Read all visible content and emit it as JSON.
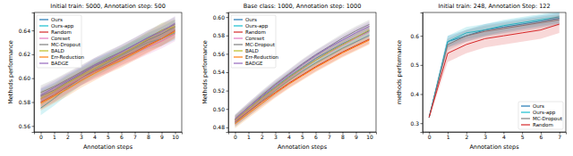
{
  "chart_data": [
    {
      "type": "line",
      "title": "Initial train: 5000, Annotation step: 500",
      "x_label": "Annotation steps",
      "y_label": "Methods performance",
      "x": [
        0,
        1,
        2,
        3,
        4,
        5,
        6,
        7,
        8,
        9,
        10
      ],
      "xlim": [
        -0.5,
        10.5
      ],
      "xticks": [
        0,
        1,
        2,
        3,
        4,
        5,
        6,
        7,
        8,
        9,
        10
      ],
      "ylim": [
        0.555,
        0.655
      ],
      "yticks": [
        0.56,
        0.58,
        {
          "value": 0.6,
          "label": "0.60"
        },
        0.62,
        0.64
      ],
      "grid": false,
      "legend": "upper left",
      "series": [
        {
          "name": "Ours",
          "color": "#1f77b4",
          "values": [
            0.585,
            0.59,
            0.597,
            0.603,
            0.61,
            0.615,
            0.62,
            0.626,
            0.632,
            0.637,
            0.643
          ],
          "error": [
            0.006,
            0.006,
            0.006,
            0.006,
            0.006,
            0.006,
            0.006,
            0.006,
            0.006,
            0.006,
            0.006
          ]
        },
        {
          "name": "Ours-app",
          "color": "#17becf",
          "values": [
            0.575,
            0.583,
            0.592,
            0.6,
            0.607,
            0.613,
            0.619,
            0.625,
            0.63,
            0.633,
            0.638
          ],
          "error": [
            0.006,
            0.006,
            0.006,
            0.006,
            0.006,
            0.006,
            0.006,
            0.006,
            0.006,
            0.006,
            0.006
          ]
        },
        {
          "name": "Random",
          "color": "#d62728",
          "values": [
            0.58,
            0.586,
            0.593,
            0.6,
            0.606,
            0.611,
            0.617,
            0.622,
            0.628,
            0.633,
            0.64
          ],
          "error": [
            0.006,
            0.006,
            0.006,
            0.006,
            0.006,
            0.006,
            0.006,
            0.006,
            0.006,
            0.006,
            0.006
          ]
        },
        {
          "name": "Coreset",
          "color": "#e377c2",
          "values": [
            0.582,
            0.588,
            0.594,
            0.6,
            0.605,
            0.61,
            0.616,
            0.621,
            0.626,
            0.631,
            0.637
          ],
          "error": [
            0.006,
            0.006,
            0.006,
            0.006,
            0.006,
            0.006,
            0.006,
            0.006,
            0.006,
            0.006,
            0.006
          ]
        },
        {
          "name": "MC-Dropout",
          "color": "#7f7f7f",
          "values": [
            0.588,
            0.593,
            0.599,
            0.605,
            0.611,
            0.617,
            0.622,
            0.628,
            0.634,
            0.64,
            0.645
          ],
          "error": [
            0.006,
            0.006,
            0.006,
            0.006,
            0.006,
            0.006,
            0.006,
            0.006,
            0.006,
            0.006,
            0.006
          ]
        },
        {
          "name": "BALD",
          "color": "#bcbd22",
          "values": [
            0.583,
            0.589,
            0.596,
            0.602,
            0.608,
            0.614,
            0.62,
            0.626,
            0.633,
            0.64,
            0.643
          ],
          "error": [
            0.006,
            0.006,
            0.006,
            0.006,
            0.006,
            0.006,
            0.006,
            0.006,
            0.006,
            0.006,
            0.006
          ]
        },
        {
          "name": "Err-Reduction",
          "color": "#ff7f0e",
          "values": [
            0.579,
            0.585,
            0.591,
            0.598,
            0.604,
            0.61,
            0.615,
            0.621,
            0.627,
            0.633,
            0.639
          ],
          "error": [
            0.006,
            0.006,
            0.006,
            0.006,
            0.006,
            0.006,
            0.006,
            0.006,
            0.006,
            0.006,
            0.006
          ]
        },
        {
          "name": "BADGE",
          "color": "#9467bd",
          "values": [
            0.586,
            0.592,
            0.598,
            0.604,
            0.611,
            0.616,
            0.622,
            0.628,
            0.634,
            0.639,
            0.646
          ],
          "error": [
            0.006,
            0.006,
            0.006,
            0.006,
            0.006,
            0.006,
            0.006,
            0.006,
            0.006,
            0.006,
            0.006
          ]
        }
      ]
    },
    {
      "type": "line",
      "title": "Base class: 1000, Annotation step: 1000",
      "x_label": "Annotation steps",
      "y_label": "Methods performance",
      "x": [
        0,
        1,
        2,
        3,
        4,
        5,
        6,
        7,
        8,
        9,
        10
      ],
      "xlim": [
        -0.5,
        10.5
      ],
      "xticks": [
        0,
        1,
        2,
        3,
        4,
        5,
        6,
        7,
        8,
        9,
        10
      ],
      "ylim": [
        0.475,
        0.605
      ],
      "yticks": [
        0.48,
        {
          "value": 0.5,
          "label": "0.50"
        },
        0.52,
        0.54,
        0.56,
        0.58,
        {
          "value": 0.6,
          "label": "0.60"
        }
      ],
      "grid": false,
      "legend": "upper left",
      "series": [
        {
          "name": "Ours",
          "color": "#1f77b4",
          "values": [
            0.488,
            0.5,
            0.513,
            0.524,
            0.535,
            0.545,
            0.555,
            0.563,
            0.571,
            0.578,
            0.585
          ],
          "error": [
            0.005,
            0.005,
            0.005,
            0.005,
            0.005,
            0.005,
            0.005,
            0.005,
            0.005,
            0.005,
            0.005
          ]
        },
        {
          "name": "Ours-app",
          "color": "#17becf",
          "values": [
            0.485,
            0.497,
            0.509,
            0.52,
            0.531,
            0.541,
            0.55,
            0.558,
            0.566,
            0.573,
            0.58
          ],
          "error": [
            0.005,
            0.005,
            0.005,
            0.005,
            0.005,
            0.005,
            0.005,
            0.005,
            0.005,
            0.005,
            0.005
          ]
        },
        {
          "name": "Random",
          "color": "#d62728",
          "values": [
            0.486,
            0.497,
            0.508,
            0.518,
            0.528,
            0.537,
            0.546,
            0.554,
            0.562,
            0.569,
            0.576
          ],
          "error": [
            0.005,
            0.005,
            0.005,
            0.005,
            0.005,
            0.005,
            0.005,
            0.005,
            0.005,
            0.005,
            0.005
          ]
        },
        {
          "name": "Coreset",
          "color": "#e377c2",
          "values": [
            0.487,
            0.499,
            0.511,
            0.522,
            0.533,
            0.543,
            0.553,
            0.561,
            0.569,
            0.577,
            0.584
          ],
          "error": [
            0.005,
            0.005,
            0.005,
            0.005,
            0.005,
            0.005,
            0.005,
            0.005,
            0.005,
            0.005,
            0.005
          ]
        },
        {
          "name": "MC-Dropout",
          "color": "#7f7f7f",
          "values": [
            0.489,
            0.502,
            0.515,
            0.527,
            0.538,
            0.549,
            0.559,
            0.568,
            0.577,
            0.585,
            0.592
          ],
          "error": [
            0.005,
            0.005,
            0.005,
            0.005,
            0.005,
            0.005,
            0.005,
            0.005,
            0.005,
            0.005,
            0.005
          ]
        },
        {
          "name": "BALD",
          "color": "#bcbd22",
          "values": [
            0.488,
            0.5,
            0.512,
            0.523,
            0.534,
            0.544,
            0.553,
            0.562,
            0.57,
            0.578,
            0.586
          ],
          "error": [
            0.005,
            0.005,
            0.005,
            0.005,
            0.005,
            0.005,
            0.005,
            0.005,
            0.005,
            0.005,
            0.005
          ]
        },
        {
          "name": "Err-Reduction",
          "color": "#ff7f0e",
          "values": [
            0.484,
            0.495,
            0.506,
            0.517,
            0.527,
            0.536,
            0.545,
            0.553,
            0.561,
            0.568,
            0.575
          ],
          "error": [
            0.005,
            0.005,
            0.005,
            0.005,
            0.005,
            0.005,
            0.005,
            0.005,
            0.005,
            0.005,
            0.005
          ]
        },
        {
          "name": "BADGE",
          "color": "#9467bd",
          "values": [
            0.489,
            0.502,
            0.514,
            0.526,
            0.537,
            0.548,
            0.558,
            0.567,
            0.575,
            0.583,
            0.59
          ],
          "error": [
            0.005,
            0.005,
            0.005,
            0.005,
            0.005,
            0.005,
            0.005,
            0.005,
            0.005,
            0.005,
            0.005
          ]
        }
      ]
    },
    {
      "type": "line",
      "title": "Initial train: 248, Annotation Step: 122",
      "x_label": "Annotation steps",
      "y_label": "methods performance",
      "x": [
        0,
        1,
        2,
        3,
        4,
        5,
        6,
        7
      ],
      "xlim": [
        -0.35,
        7.35
      ],
      "xticks": [
        0,
        1,
        2,
        3,
        4,
        5,
        6,
        7
      ],
      "ylim": [
        0.27,
        0.68
      ],
      "yticks": [
        0.3,
        0.4,
        0.5,
        0.6
      ],
      "grid": false,
      "legend": "lower right",
      "series": [
        {
          "name": "Ours",
          "color": "#1f77b4",
          "values": [
            0.32,
            0.58,
            0.6,
            0.62,
            0.63,
            0.64,
            0.65,
            0.66
          ],
          "error": [
            0.005,
            0.02,
            0.02,
            0.02,
            0.02,
            0.02,
            0.02,
            0.02
          ]
        },
        {
          "name": "Ours-app",
          "color": "#17becf",
          "values": [
            0.32,
            0.58,
            0.61,
            0.62,
            0.635,
            0.645,
            0.655,
            0.665
          ],
          "error": [
            0.005,
            0.02,
            0.02,
            0.02,
            0.02,
            0.02,
            0.02,
            0.02
          ]
        },
        {
          "name": "MC-Dropout",
          "color": "#7f7f7f",
          "values": [
            0.32,
            0.57,
            0.6,
            0.615,
            0.625,
            0.635,
            0.645,
            0.655
          ],
          "error": [
            0.005,
            0.02,
            0.02,
            0.02,
            0.02,
            0.02,
            0.02,
            0.02
          ]
        },
        {
          "name": "Random",
          "color": "#d62728",
          "values": [
            0.32,
            0.54,
            0.57,
            0.59,
            0.6,
            0.61,
            0.62,
            0.64
          ],
          "error": [
            0.005,
            0.03,
            0.03,
            0.03,
            0.03,
            0.03,
            0.03,
            0.03
          ]
        }
      ]
    }
  ]
}
